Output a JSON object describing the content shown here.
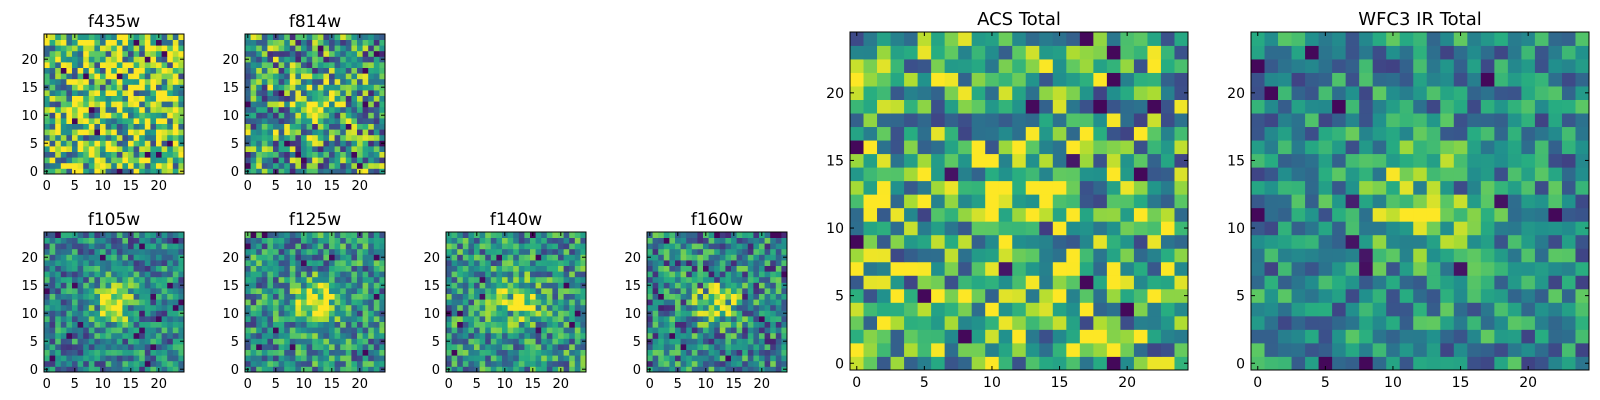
{
  "chart_data": {
    "type": "heatmap",
    "colormap": "viridis",
    "panels": [
      {
        "id": "f435w",
        "title": "f435w",
        "grid": 25,
        "xticks": [
          0,
          5,
          10,
          15,
          20
        ],
        "yticks": [
          0,
          5,
          10,
          15,
          20
        ],
        "xlim": [
          -0.5,
          24.5
        ],
        "ylim": [
          -0.5,
          24.5
        ],
        "source_center": null,
        "source_strength": 0.0,
        "noise_level": 0.5,
        "base_level": 0.72
      },
      {
        "id": "f814w",
        "title": "f814w",
        "grid": 25,
        "xticks": [
          0,
          5,
          10,
          15,
          20
        ],
        "yticks": [
          0,
          5,
          10,
          15,
          20
        ],
        "xlim": [
          -0.5,
          24.5
        ],
        "ylim": [
          -0.5,
          24.5
        ],
        "source_center": [
          12,
          12
        ],
        "source_strength": 0.35,
        "noise_level": 0.45,
        "base_level": 0.55
      },
      {
        "id": "f105w",
        "title": "f105w",
        "grid": 25,
        "xticks": [
          0,
          5,
          10,
          15,
          20
        ],
        "yticks": [
          0,
          5,
          10,
          15,
          20
        ],
        "xlim": [
          -0.5,
          24.5
        ],
        "ylim": [
          -0.5,
          24.5
        ],
        "source_center": [
          12,
          12
        ],
        "source_strength": 0.55,
        "noise_level": 0.3,
        "base_level": 0.45
      },
      {
        "id": "f125w",
        "title": "f125w",
        "grid": 25,
        "xticks": [
          0,
          5,
          10,
          15,
          20
        ],
        "yticks": [
          0,
          5,
          10,
          15,
          20
        ],
        "xlim": [
          -0.5,
          24.5
        ],
        "ylim": [
          -0.5,
          24.5
        ],
        "source_center": [
          12,
          12
        ],
        "source_strength": 0.5,
        "noise_level": 0.32,
        "base_level": 0.5
      },
      {
        "id": "f140w",
        "title": "f140w",
        "grid": 25,
        "xticks": [
          0,
          5,
          10,
          15,
          20
        ],
        "yticks": [
          0,
          5,
          10,
          15,
          20
        ],
        "xlim": [
          -0.5,
          24.5
        ],
        "ylim": [
          -0.5,
          24.5
        ],
        "source_center": [
          12,
          12
        ],
        "source_strength": 0.45,
        "noise_level": 0.32,
        "base_level": 0.52
      },
      {
        "id": "f160w",
        "title": "f160w",
        "grid": 25,
        "xticks": [
          0,
          5,
          10,
          15,
          20
        ],
        "yticks": [
          0,
          5,
          10,
          15,
          20
        ],
        "xlim": [
          -0.5,
          24.5
        ],
        "ylim": [
          -0.5,
          24.5
        ],
        "source_center": [
          12,
          12
        ],
        "source_strength": 0.5,
        "noise_level": 0.35,
        "base_level": 0.45
      },
      {
        "id": "acs_total",
        "title": "ACS Total",
        "grid": 25,
        "xticks": [
          0,
          5,
          10,
          15,
          20
        ],
        "yticks": [
          0,
          5,
          10,
          15,
          20
        ],
        "xlim": [
          -0.5,
          24.5
        ],
        "ylim": [
          -0.5,
          24.5
        ],
        "source_center": [
          12,
          12
        ],
        "source_strength": 0.3,
        "noise_level": 0.42,
        "base_level": 0.62
      },
      {
        "id": "wfc3_total",
        "title": "WFC3 IR Total",
        "grid": 25,
        "xticks": [
          0,
          5,
          10,
          15,
          20
        ],
        "yticks": [
          0,
          5,
          10,
          15,
          20
        ],
        "xlim": [
          -0.5,
          24.5
        ],
        "ylim": [
          -0.5,
          24.5
        ],
        "source_center": [
          12,
          12
        ],
        "source_strength": 0.45,
        "noise_level": 0.28,
        "base_level": 0.48
      }
    ]
  }
}
